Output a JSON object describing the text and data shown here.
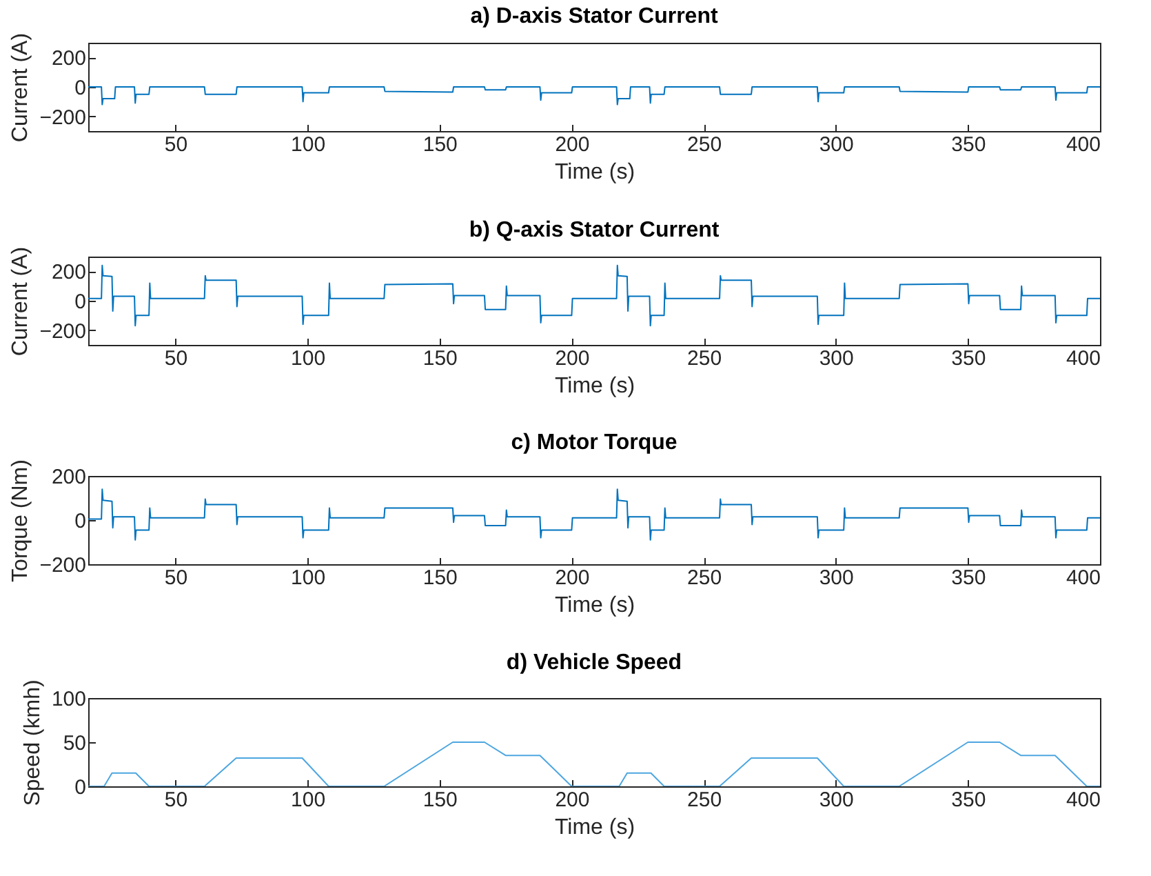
{
  "chart_data": [
    {
      "type": "line",
      "title": "a) D-axis Stator Current",
      "xlabel": "Time (s)",
      "ylabel": "Current (A)",
      "xlim": [
        17,
        400
      ],
      "xticks": [
        50,
        100,
        150,
        200,
        250,
        300,
        350,
        400
      ],
      "ylim": [
        -300,
        300
      ],
      "yticks": [
        -200,
        0,
        200
      ],
      "grid": false,
      "x": [
        17,
        22,
        22.3,
        22.6,
        27,
        27.3,
        34.5,
        34.8,
        35.1,
        40,
        40.3,
        61,
        61.3,
        73,
        73.3,
        98,
        98.3,
        98.6,
        108,
        108.3,
        129,
        129.3,
        155,
        155.3,
        167,
        167.3,
        175,
        175.3,
        188,
        188.3,
        188.6,
        200,
        200.3,
        217,
        217.3,
        217.6,
        222,
        222.3,
        229.5,
        229.8,
        230.1,
        235,
        235.3,
        256,
        256.3,
        268,
        268.3,
        293,
        293.3,
        293.6,
        303,
        303.3,
        324,
        324.3,
        350,
        350.3,
        362,
        362.3,
        370,
        370.3,
        383,
        383.3,
        383.6,
        395,
        395.3,
        400
      ],
      "series": [
        {
          "color": "#0072bd",
          "values": [
            0,
            0,
            -120,
            -80,
            -80,
            0,
            0,
            -110,
            -50,
            -50,
            0,
            0,
            -50,
            -50,
            0,
            0,
            -100,
            -40,
            -40,
            0,
            0,
            -30,
            -35,
            0,
            0,
            -20,
            -20,
            0,
            0,
            -90,
            -40,
            -40,
            0,
            0,
            -120,
            -80,
            -80,
            0,
            0,
            -110,
            -50,
            -50,
            0,
            0,
            -50,
            -50,
            0,
            0,
            -100,
            -40,
            -40,
            0,
            0,
            -30,
            -35,
            0,
            0,
            -20,
            -20,
            0,
            0,
            -90,
            -40,
            -40,
            0,
            0
          ]
        }
      ]
    },
    {
      "type": "line",
      "title": "b) Q-axis Stator Current",
      "xlabel": "Time (s)",
      "ylabel": "Current (A)",
      "xlim": [
        17,
        400
      ],
      "xticks": [
        50,
        100,
        150,
        200,
        250,
        300,
        350,
        400
      ],
      "ylim": [
        -300,
        300
      ],
      "yticks": [
        -200,
        0,
        200
      ],
      "grid": false,
      "x": [
        17,
        22,
        22.3,
        22.6,
        26,
        26.3,
        26.6,
        34.5,
        34.8,
        35.1,
        40,
        40.3,
        40.6,
        61,
        61.3,
        61.6,
        73,
        73.3,
        73.6,
        98,
        98.3,
        98.6,
        108,
        108.3,
        108.6,
        129,
        129.3,
        155,
        155.3,
        155.6,
        167,
        167.3,
        175,
        175.3,
        175.6,
        188,
        188.3,
        188.6,
        200,
        200.3,
        217,
        217.3,
        217.6,
        221,
        221.3,
        221.6,
        229.5,
        229.8,
        230.1,
        235,
        235.3,
        235.6,
        256,
        256.3,
        256.6,
        268,
        268.3,
        268.6,
        293,
        293.3,
        293.6,
        303,
        303.3,
        303.6,
        324,
        324.3,
        350,
        350.3,
        350.6,
        362,
        362.3,
        370,
        370.3,
        370.6,
        383,
        383.3,
        383.6,
        395,
        395.3,
        400
      ],
      "series": [
        {
          "color": "#0072bd",
          "values": [
            15,
            15,
            240,
            170,
            165,
            -70,
            30,
            30,
            -170,
            -100,
            -100,
            120,
            15,
            15,
            170,
            140,
            140,
            -40,
            30,
            30,
            -160,
            -100,
            -100,
            120,
            15,
            15,
            110,
            115,
            -20,
            35,
            35,
            -60,
            -60,
            100,
            35,
            35,
            -150,
            -100,
            -100,
            15,
            15,
            240,
            170,
            165,
            -70,
            30,
            30,
            -170,
            -100,
            -100,
            120,
            15,
            15,
            170,
            140,
            140,
            -40,
            30,
            30,
            -160,
            -100,
            -100,
            120,
            15,
            15,
            110,
            115,
            -20,
            35,
            35,
            -60,
            -60,
            100,
            35,
            35,
            -150,
            -100,
            -100,
            15,
            15
          ]
        }
      ]
    },
    {
      "type": "line",
      "title": "c) Motor Torque",
      "xlabel": "Time (s)",
      "ylabel": "Torque (Nm)",
      "xlim": [
        17,
        400
      ],
      "xticks": [
        50,
        100,
        150,
        200,
        250,
        300,
        350,
        400
      ],
      "ylim": [
        -200,
        200
      ],
      "yticks": [
        -200,
        0,
        200
      ],
      "grid": false,
      "x": [
        17,
        22,
        22.3,
        22.6,
        26,
        26.3,
        26.6,
        34.5,
        34.8,
        35.1,
        40,
        40.3,
        40.6,
        61,
        61.3,
        61.6,
        73,
        73.3,
        73.6,
        98,
        98.3,
        98.6,
        108,
        108.3,
        108.6,
        129,
        129.3,
        155,
        155.3,
        155.6,
        167,
        167.3,
        175,
        175.3,
        175.6,
        188,
        188.3,
        188.6,
        200,
        200.3,
        217,
        217.3,
        217.6,
        221,
        221.3,
        221.6,
        229.5,
        229.8,
        230.1,
        235,
        235.3,
        235.6,
        256,
        256.3,
        256.6,
        268,
        268.3,
        268.6,
        293,
        293.3,
        293.6,
        303,
        303.3,
        303.6,
        324,
        324.3,
        350,
        350.3,
        350.6,
        362,
        362.3,
        370,
        370.3,
        370.6,
        383,
        383.3,
        383.6,
        395,
        395.3,
        400
      ],
      "series": [
        {
          "color": "#0072bd",
          "values": [
            5,
            5,
            140,
            90,
            85,
            -35,
            15,
            15,
            -90,
            -45,
            -45,
            55,
            10,
            10,
            95,
            70,
            70,
            -20,
            15,
            15,
            -80,
            -45,
            -45,
            55,
            10,
            10,
            55,
            55,
            -10,
            20,
            20,
            -25,
            -25,
            45,
            15,
            15,
            -80,
            -45,
            -45,
            10,
            10,
            140,
            90,
            85,
            -35,
            15,
            15,
            -90,
            -45,
            -45,
            55,
            10,
            10,
            95,
            70,
            70,
            -20,
            15,
            15,
            -80,
            -45,
            -45,
            55,
            10,
            10,
            55,
            55,
            -10,
            20,
            20,
            -25,
            -25,
            45,
            15,
            15,
            -80,
            -45,
            -45,
            10,
            10
          ]
        }
      ]
    },
    {
      "type": "line",
      "title": "d) Vehicle Speed",
      "xlabel": "Time (s)",
      "ylabel": "Speed (kmh)",
      "xlim": [
        17,
        400
      ],
      "xticks": [
        50,
        100,
        150,
        200,
        250,
        300,
        350,
        400
      ],
      "ylim": [
        0,
        100
      ],
      "yticks": [
        0,
        50,
        100
      ],
      "grid": false,
      "x": [
        17,
        23,
        26,
        35,
        40,
        61,
        73,
        98,
        108,
        129,
        155,
        167,
        175,
        188,
        200,
        218,
        221,
        230,
        235,
        256,
        268,
        293,
        303,
        324,
        350,
        362,
        370,
        383,
        395,
        400
      ],
      "series": [
        {
          "color": "#4da6e0",
          "values": [
            0,
            0,
            15,
            15,
            0,
            0,
            32,
            32,
            0,
            0,
            50,
            50,
            35,
            35,
            0,
            0,
            15,
            15,
            0,
            0,
            32,
            32,
            0,
            0,
            50,
            50,
            35,
            35,
            0,
            0
          ]
        }
      ]
    }
  ]
}
